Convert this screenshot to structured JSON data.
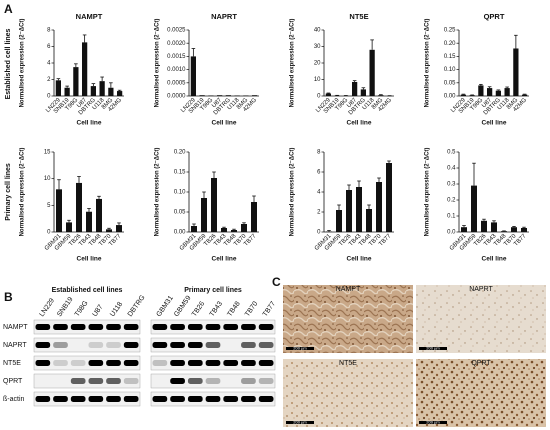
{
  "chart_data": [
    {
      "type": "bar",
      "title": "NAMPT",
      "ylabel": "Normalised expression (2⁻ΔCt)",
      "xlabel": "Cell line",
      "color": "#111111",
      "categories": [
        "LN229",
        "SNB19",
        "T98G",
        "U87",
        "DBTRG",
        "U118",
        "8MG",
        "42MG"
      ],
      "values": [
        1.9,
        1.0,
        3.5,
        6.5,
        1.2,
        1.8,
        1.0,
        0.6
      ],
      "errors": [
        0.2,
        0.2,
        0.4,
        0.9,
        0.3,
        0.5,
        0.6,
        0.1
      ],
      "ylim": [
        0,
        8
      ],
      "yticks": [
        0,
        2,
        4,
        6,
        8
      ]
    },
    {
      "type": "bar",
      "title": "NAPRT",
      "ylabel": "Normalised expression (2⁻ΔCt)",
      "xlabel": "Cell line",
      "color": "#111111",
      "categories": [
        "LN229",
        "SNB19",
        "T98G",
        "U87",
        "DBTRG",
        "U118",
        "8MG",
        "42MG"
      ],
      "values": [
        0.0015,
        3e-05,
        2e-05,
        3e-05,
        3e-05,
        2e-05,
        2e-05,
        3e-05
      ],
      "errors": [
        0.0003,
        0,
        0,
        0,
        0,
        0,
        0,
        0
      ],
      "ylim": [
        0,
        0.0025
      ],
      "yticks": [
        {
          "value": 0,
          "label": "0.0000"
        },
        0.0005,
        {
          "value": 0.001,
          "label": "0.0010"
        },
        0.0015,
        {
          "value": 0.002,
          "label": "0.0020"
        },
        0.0025
      ]
    },
    {
      "type": "bar",
      "title": "NT5E",
      "ylabel": "Normalised expression (2⁻ΔCt)",
      "xlabel": "Cell line",
      "color": "#111111",
      "categories": [
        "LN229",
        "SNB19",
        "T98G",
        "U87",
        "DBTRG",
        "U118",
        "8MG",
        "42MG"
      ],
      "values": [
        1.5,
        0.3,
        0.2,
        8.5,
        4,
        28,
        0.5,
        0.1
      ],
      "errors": [
        0.3,
        0.1,
        0.1,
        0.8,
        1.0,
        6.0,
        0.3,
        0.1
      ],
      "ylim": [
        0,
        40
      ],
      "yticks": [
        0,
        10,
        20,
        30,
        40
      ]
    },
    {
      "type": "bar",
      "title": "QPRT",
      "ylabel": "Normalised expression (2⁻ΔCt)",
      "xlabel": "Cell line",
      "color": "#111111",
      "categories": [
        "LN229",
        "SNB19",
        "T98G",
        "U87",
        "DBTRG",
        "U118",
        "8MG",
        "42MG"
      ],
      "values": [
        0.005,
        0.003,
        0.04,
        0.03,
        0.02,
        0.03,
        0.18,
        0.005
      ],
      "errors": [
        0.002,
        0.001,
        0.004,
        0.005,
        0.003,
        0.004,
        0.05,
        0.002
      ],
      "ylim": [
        0,
        0.25
      ],
      "yticks": [
        {
          "value": 0,
          "label": "0.00"
        },
        0.05,
        {
          "value": 0.1,
          "label": "0.10"
        },
        0.15,
        {
          "value": 0.2,
          "label": "0.20"
        },
        0.25
      ]
    },
    {
      "type": "bar",
      "ylabel": "Normalised expression (2⁻ΔCt)",
      "xlabel": "Cell line",
      "color": "#111111",
      "categories": [
        "GBM31",
        "GBM59",
        "TB26",
        "TB43",
        "TB48",
        "TB70",
        "TB77"
      ],
      "values": [
        8,
        1.8,
        9.2,
        3.8,
        6.2,
        0.5,
        1.3
      ],
      "errors": [
        1.8,
        0.4,
        1.2,
        0.6,
        0.5,
        0.2,
        0.4
      ],
      "ylim": [
        0,
        15
      ],
      "yticks": [
        0,
        5,
        10,
        15
      ]
    },
    {
      "type": "bar",
      "ylabel": "Normalised expression (2⁻ΔCt)",
      "xlabel": "Cell line",
      "color": "#111111",
      "categories": [
        "GBM31",
        "GBM59",
        "TB26",
        "TB43",
        "TB48",
        "TB70",
        "TB77"
      ],
      "values": [
        0.015,
        0.085,
        0.135,
        0.01,
        0.005,
        0.02,
        0.075
      ],
      "errors": [
        0.005,
        0.015,
        0.015,
        0.002,
        0.002,
        0.003,
        0.015
      ],
      "ylim": [
        0,
        0.2
      ],
      "yticks": [
        {
          "value": 0,
          "label": "0.00"
        },
        0.05,
        {
          "value": 0.1,
          "label": "0.10"
        },
        0.15,
        {
          "value": 0.2,
          "label": "0.20"
        }
      ]
    },
    {
      "type": "bar",
      "ylabel": "Normalised expression (2⁻ΔCt)",
      "xlabel": "Cell line",
      "color": "#111111",
      "categories": [
        "GBM31",
        "GBM59",
        "TB26",
        "TB43",
        "TB48",
        "TB70",
        "TB77"
      ],
      "values": [
        0.05,
        2.2,
        4.2,
        4.5,
        2.3,
        5.0,
        6.9
      ],
      "errors": [
        0.1,
        0.5,
        0.5,
        0.6,
        0.4,
        0.4,
        0.2
      ],
      "ylim": [
        0,
        8
      ],
      "yticks": [
        0,
        2,
        4,
        6,
        8
      ]
    },
    {
      "type": "bar",
      "ylabel": "Normalised expression (2⁻ΔCt)",
      "xlabel": "Cell line",
      "color": "#111111",
      "categories": [
        "GBM31",
        "GBM59",
        "TB26",
        "TB43",
        "TB48",
        "TB70",
        "TB77"
      ],
      "values": [
        0.03,
        0.29,
        0.07,
        0.06,
        0.005,
        0.03,
        0.025
      ],
      "errors": [
        0.01,
        0.14,
        0.01,
        0.01,
        0.002,
        0.005,
        0.005
      ],
      "ylim": [
        0,
        0.5
      ],
      "yticks": [
        {
          "value": 0,
          "label": "0.0"
        },
        0.1,
        0.2,
        0.3,
        0.4,
        0.5
      ]
    }
  ],
  "panel_a": {
    "letter": "A",
    "row_labels": [
      "Established cell lines",
      "Primary cell lines"
    ]
  },
  "panel_b": {
    "letter": "B",
    "groups": [
      {
        "title": "Established cell lines",
        "lanes": [
          "LN229",
          "SNB19",
          "T98G",
          "U87",
          "U118",
          "DBTRG"
        ]
      },
      {
        "title": "Primary cell lines",
        "lanes": [
          "GBM31",
          "GBM59",
          "TB26",
          "TB43",
          "TB48",
          "TB70",
          "TB77"
        ]
      }
    ],
    "rows": [
      "NAMPT",
      "NAPRT",
      "NT5E",
      "QPRT",
      "ß-actin"
    ]
  },
  "panel_c": {
    "letter": "C",
    "images": [
      {
        "label": "NAMPT",
        "scale": "200 µm"
      },
      {
        "label": "NAPRT",
        "scale": "200 µm"
      },
      {
        "label": "NT5E",
        "scale": "200 µm"
      },
      {
        "label": "QPRT",
        "scale": "200 µm"
      }
    ]
  }
}
